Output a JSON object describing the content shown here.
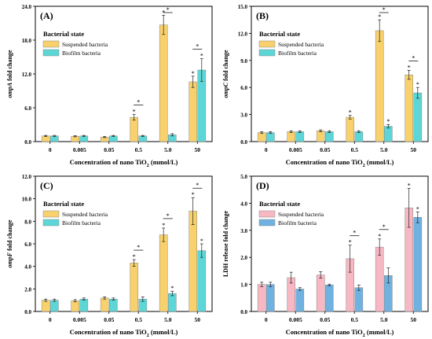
{
  "chart_data": [
    {
      "type": "bar",
      "panel_label": "(A)",
      "legend_title": "Bacterial state",
      "ylabel_italic": "ompA",
      "ylabel_rest": " fold change",
      "xlabel": "Concentration of nano TiO",
      "xlabel_sub": "2",
      "xlabel_unit": " (mmol/L)",
      "categories": [
        "0",
        "0.005",
        "0.05",
        "0.5",
        "5.0",
        "50"
      ],
      "ylim": [
        0,
        24
      ],
      "yticks": [
        0.0,
        6.0,
        12.0,
        18.0,
        24.0
      ],
      "ytick_labels": [
        "0.0",
        "6.0",
        "12.0",
        "18.0",
        "24.0"
      ],
      "series": [
        {
          "name": "Suspended bacteria",
          "color": "#F8D16C",
          "values": [
            1.0,
            0.95,
            0.8,
            4.3,
            20.7,
            10.6
          ],
          "errors": [
            0.1,
            0.1,
            0.1,
            0.5,
            1.7,
            1.0
          ],
          "stars": [
            false,
            false,
            false,
            true,
            true,
            true
          ]
        },
        {
          "name": "Biofilm bacteria",
          "color": "#5CD6D6",
          "values": [
            1.0,
            1.0,
            1.0,
            1.0,
            1.2,
            12.7
          ],
          "errors": [
            0.1,
            0.1,
            0.1,
            0.1,
            0.2,
            2.0
          ],
          "stars": [
            false,
            false,
            false,
            false,
            false,
            true
          ]
        }
      ],
      "sig_brackets": [
        3,
        4,
        5
      ]
    },
    {
      "type": "bar",
      "panel_label": "(B)",
      "legend_title": "Bacterial state",
      "ylabel_italic": "ompC",
      "ylabel_rest": " fold change",
      "xlabel": "Concentration of nano TiO",
      "xlabel_sub": "2",
      "xlabel_unit": " (mmol/L)",
      "categories": [
        "0",
        "0.005",
        "0.05",
        "0.5",
        "5.0",
        "50"
      ],
      "ylim": [
        0,
        15
      ],
      "yticks": [
        0.0,
        3.0,
        6.0,
        9.0,
        12.0,
        15.0
      ],
      "ytick_labels": [
        "0.0",
        "3.0",
        "6.0",
        "9.0",
        "12.0",
        "15.0"
      ],
      "series": [
        {
          "name": "Suspended bacteria",
          "color": "#F8D16C",
          "values": [
            1.0,
            1.1,
            1.2,
            2.7,
            12.3,
            7.4
          ],
          "errors": [
            0.1,
            0.1,
            0.1,
            0.2,
            1.2,
            0.5
          ],
          "stars": [
            false,
            false,
            false,
            true,
            true,
            true
          ]
        },
        {
          "name": "Biofilm bacteria",
          "color": "#5CD6D6",
          "values": [
            1.0,
            1.1,
            1.1,
            1.1,
            1.7,
            5.4
          ],
          "errors": [
            0.1,
            0.1,
            0.1,
            0.1,
            0.2,
            0.6
          ],
          "stars": [
            false,
            false,
            false,
            false,
            true,
            true
          ]
        }
      ],
      "sig_brackets": [
        4,
        5
      ]
    },
    {
      "type": "bar",
      "panel_label": "(C)",
      "legend_title": "Bacterial state",
      "ylabel_italic": "ompF",
      "ylabel_rest": " fold change",
      "xlabel": "Concentration of nano TiO",
      "xlabel_sub": "2",
      "xlabel_unit": " (mmol/L)",
      "categories": [
        "0",
        "0.005",
        "0.05",
        "0.5",
        "5.0",
        "50"
      ],
      "ylim": [
        0,
        12
      ],
      "yticks": [
        0.0,
        2.0,
        4.0,
        6.0,
        8.0,
        10.0,
        12.0
      ],
      "ytick_labels": [
        "0.0",
        "2.0",
        "4.0",
        "6.0",
        "8.0",
        "10.0",
        "12.0"
      ],
      "series": [
        {
          "name": "Suspended bacteria",
          "color": "#F8D16C",
          "values": [
            1.0,
            0.95,
            1.2,
            4.3,
            6.8,
            8.9
          ],
          "errors": [
            0.1,
            0.1,
            0.1,
            0.3,
            0.6,
            1.2
          ],
          "stars": [
            false,
            false,
            false,
            true,
            true,
            true
          ]
        },
        {
          "name": "Biofilm bacteria",
          "color": "#5CD6D6",
          "values": [
            1.0,
            1.1,
            1.1,
            1.1,
            1.6,
            5.4
          ],
          "errors": [
            0.1,
            0.1,
            0.1,
            0.2,
            0.2,
            0.6
          ],
          "stars": [
            false,
            false,
            false,
            false,
            true,
            true
          ]
        }
      ],
      "sig_brackets": [
        3,
        4,
        5
      ]
    },
    {
      "type": "bar",
      "panel_label": "(D)",
      "legend_title": "Bacterial state",
      "ylabel_italic": "",
      "ylabel_rest": "LDH release fold change",
      "xlabel": "Concentration of nano TiO",
      "xlabel_sub": "2",
      "xlabel_unit": " (mmol/L)",
      "categories": [
        "0",
        "0.005",
        "0.05",
        "0.5",
        "5.0",
        "50"
      ],
      "ylim": [
        0,
        5
      ],
      "yticks": [
        0.0,
        1.0,
        2.0,
        3.0,
        4.0,
        5.0
      ],
      "ytick_labels": [
        "0.0",
        "1.0",
        "2.0",
        "3.0",
        "4.0",
        "5.0"
      ],
      "series": [
        {
          "name": "Suspended bacteria",
          "color": "#F7B7C3",
          "values": [
            1.0,
            1.25,
            1.35,
            1.95,
            2.38,
            3.83
          ],
          "errors": [
            0.08,
            0.2,
            0.12,
            0.5,
            0.3,
            0.72
          ],
          "stars": [
            false,
            false,
            false,
            true,
            true,
            true
          ]
        },
        {
          "name": "Biofilm bacteria",
          "color": "#6FB1E0",
          "values": [
            1.0,
            0.83,
            0.98,
            0.88,
            1.33,
            3.48
          ],
          "errors": [
            0.08,
            0.05,
            0.03,
            0.1,
            0.28,
            0.2
          ],
          "stars": [
            false,
            false,
            false,
            false,
            false,
            true
          ]
        }
      ],
      "sig_brackets": [
        3,
        4
      ]
    }
  ]
}
